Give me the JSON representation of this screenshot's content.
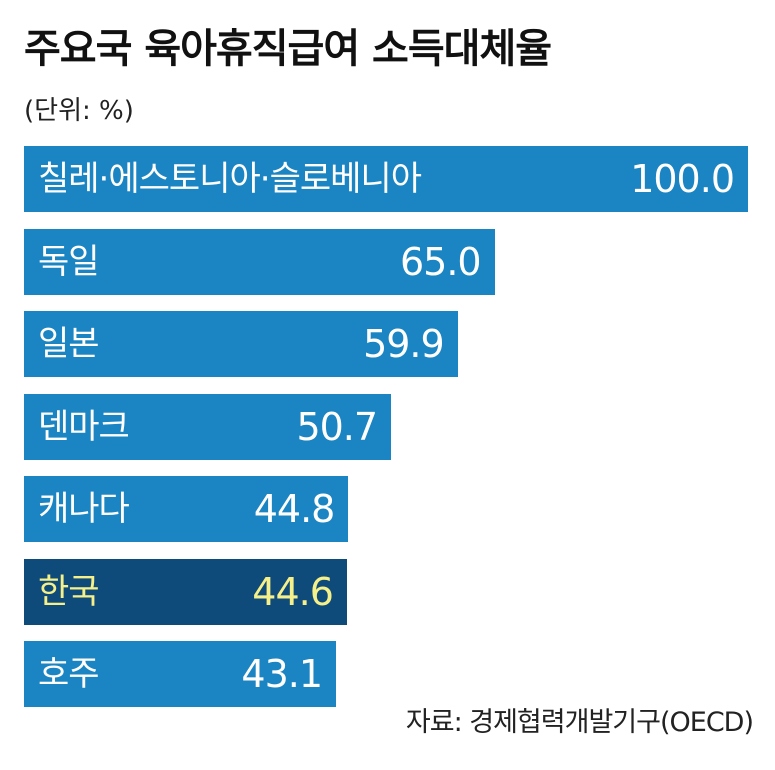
{
  "chart_data": {
    "type": "bar",
    "orientation": "horizontal",
    "title": "주요국 육아휴직급여 소득대체율",
    "unit_note": "(단위: %)",
    "categories": [
      "칠레·에스토니아·슬로베니아",
      "독일",
      "일본",
      "덴마크",
      "캐나다",
      "한국",
      "호주"
    ],
    "values": [
      100.0,
      65.0,
      59.9,
      50.7,
      44.8,
      44.6,
      43.1
    ],
    "value_labels": [
      "100.0",
      "65.0",
      "59.9",
      "50.7",
      "44.8",
      "44.6",
      "43.1"
    ],
    "highlight": "한국",
    "xlim": [
      0,
      100
    ],
    "grid": false,
    "legend": "none",
    "source": "자료: 경제협력개발기구(OECD)"
  },
  "colors": {
    "bar": "#1a85c2",
    "bar_highlight": "#0e4a7a",
    "label_text": "#ffffff",
    "highlight_text": "#f6f08a"
  }
}
